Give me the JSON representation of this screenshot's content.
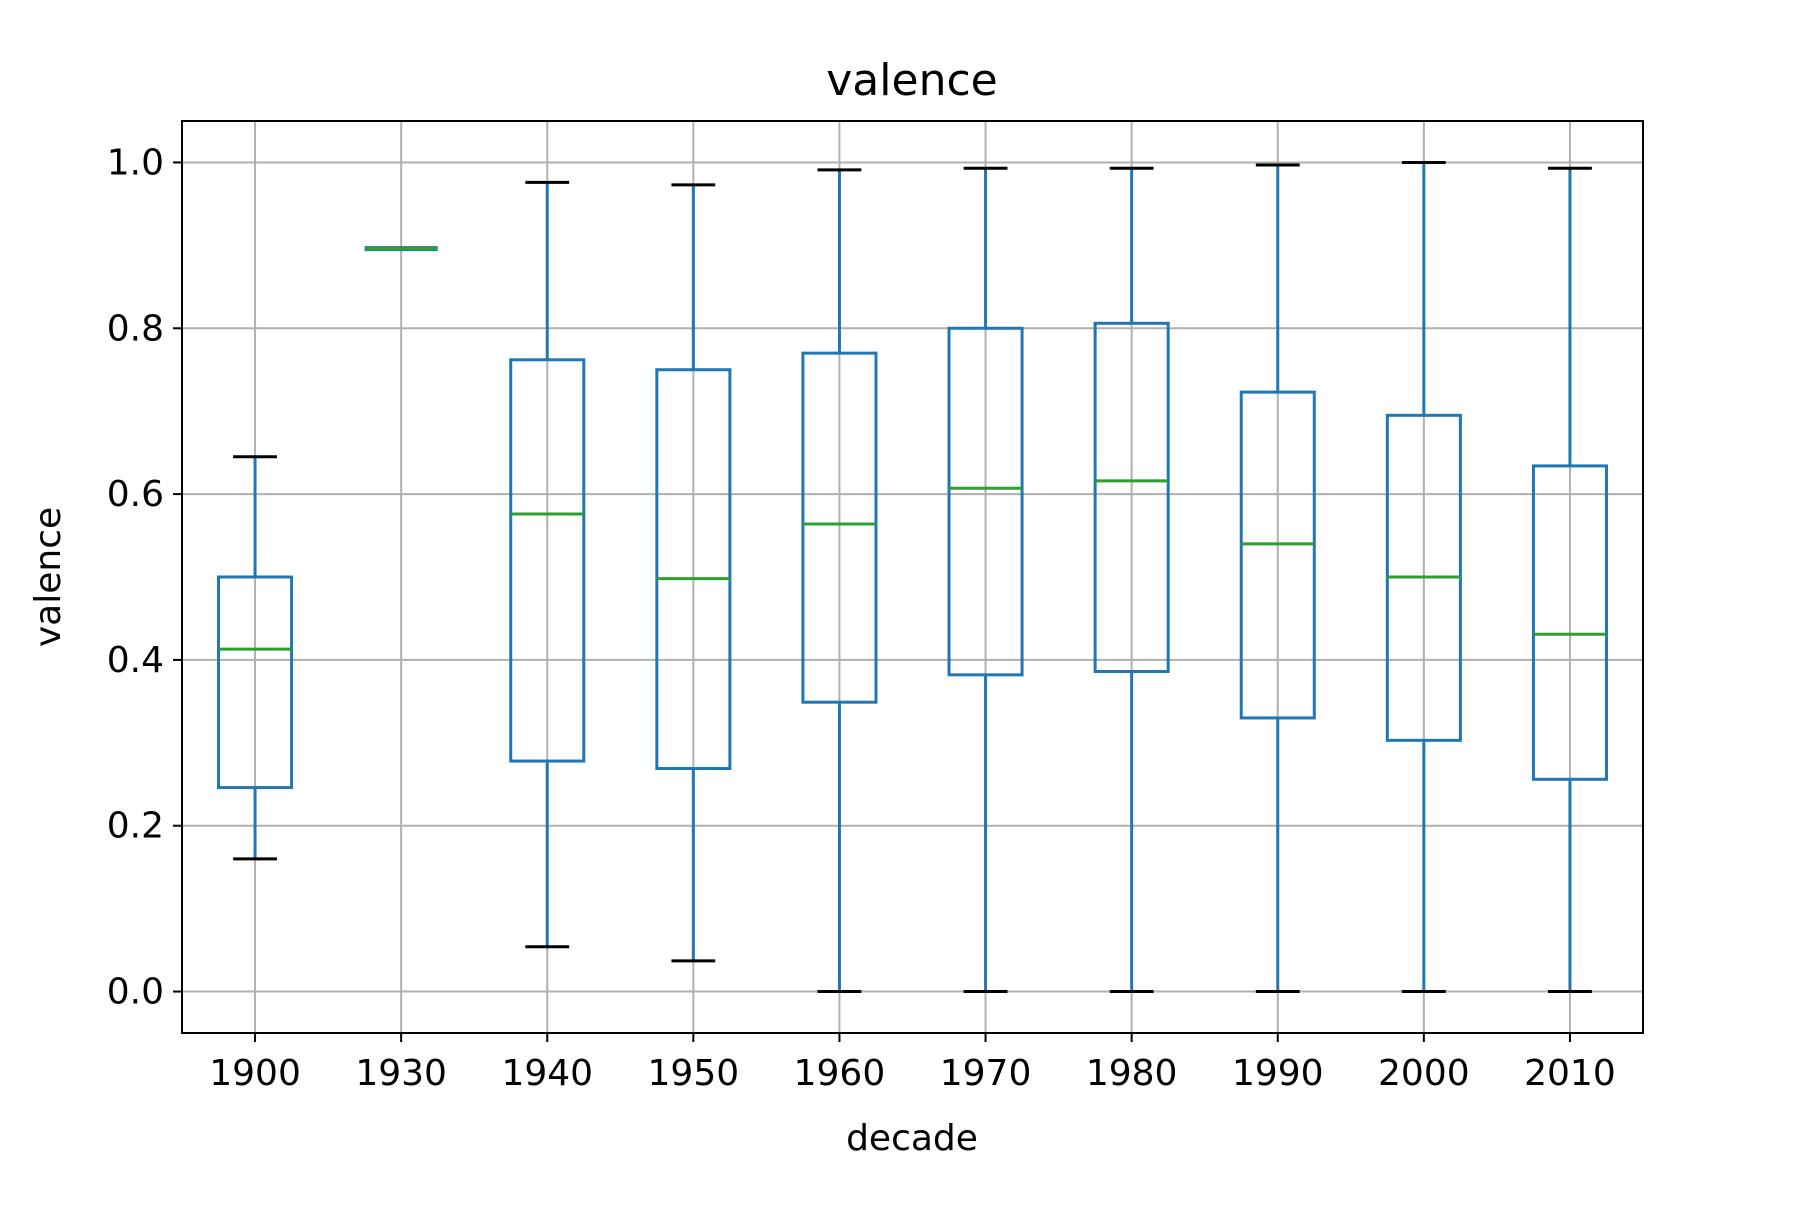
{
  "chart_data": {
    "type": "boxplot",
    "title": "valence",
    "xlabel": "decade",
    "ylabel": "valence",
    "ylim": [
      -0.05,
      1.05
    ],
    "yticks": [
      0.0,
      0.2,
      0.4,
      0.6,
      0.8,
      1.0
    ],
    "ytick_labels": [
      "0.0",
      "0.2",
      "0.4",
      "0.6",
      "0.8",
      "1.0"
    ],
    "grid": true,
    "categories": [
      "1900",
      "1930",
      "1940",
      "1950",
      "1960",
      "1970",
      "1980",
      "1990",
      "2000",
      "2010"
    ],
    "boxes": [
      {
        "label": "1900",
        "whisker_low": 0.16,
        "q1": 0.246,
        "median": 0.413,
        "q3": 0.5,
        "whisker_high": 0.645
      },
      {
        "label": "1930",
        "whisker_low": 0.896,
        "q1": 0.896,
        "median": 0.896,
        "q3": 0.896,
        "whisker_high": 0.896
      },
      {
        "label": "1940",
        "whisker_low": 0.054,
        "q1": 0.278,
        "median": 0.576,
        "q3": 0.762,
        "whisker_high": 0.976
      },
      {
        "label": "1950",
        "whisker_low": 0.037,
        "q1": 0.269,
        "median": 0.498,
        "q3": 0.75,
        "whisker_high": 0.973
      },
      {
        "label": "1960",
        "whisker_low": 0.0,
        "q1": 0.349,
        "median": 0.564,
        "q3": 0.77,
        "whisker_high": 0.991
      },
      {
        "label": "1970",
        "whisker_low": 0.0,
        "q1": 0.382,
        "median": 0.607,
        "q3": 0.8,
        "whisker_high": 0.993
      },
      {
        "label": "1980",
        "whisker_low": 0.0,
        "q1": 0.386,
        "median": 0.616,
        "q3": 0.806,
        "whisker_high": 0.993
      },
      {
        "label": "1990",
        "whisker_low": 0.0,
        "q1": 0.33,
        "median": 0.54,
        "q3": 0.723,
        "whisker_high": 0.997
      },
      {
        "label": "2000",
        "whisker_low": 0.0,
        "q1": 0.303,
        "median": 0.5,
        "q3": 0.695,
        "whisker_high": 1.0
      },
      {
        "label": "2010",
        "whisker_low": 0.0,
        "q1": 0.256,
        "median": 0.431,
        "q3": 0.634,
        "whisker_high": 0.993
      }
    ],
    "colors": {
      "box": "#1f77b4",
      "median": "#2ca02c",
      "cap": "#000000",
      "grid": "#b0b0b0",
      "axes": "#000000"
    }
  }
}
